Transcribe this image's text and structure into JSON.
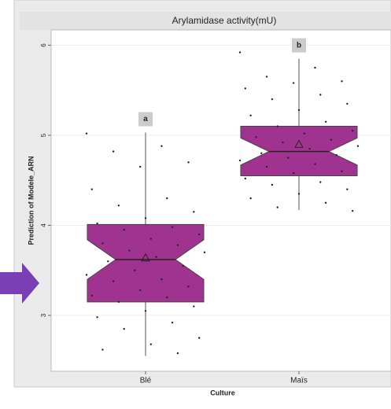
{
  "chart_data": {
    "type": "boxplot",
    "title": "Arylamidase activity(mU)",
    "x_label": "Culture",
    "y_label": "Prediction of Modele_ARN",
    "categories": [
      "Blé",
      "Maïs"
    ],
    "annotations": [
      "a",
      "b"
    ],
    "color": "#a0338f",
    "grid": true,
    "ylim": [
      2.38,
      6.17
    ],
    "yticks": [
      3,
      4,
      5,
      6
    ],
    "boxes": [
      {
        "whislo": 2.55,
        "q1": 3.15,
        "notch_lo": 3.4,
        "med": 3.62,
        "notch_hi": 3.84,
        "q3": 4.01,
        "whishi": 5.03,
        "mean": 3.64
      },
      {
        "whislo": 4.17,
        "q1": 4.55,
        "notch_lo": 4.67,
        "med": 4.82,
        "notch_hi": 4.97,
        "q3": 5.1,
        "whishi": 5.85,
        "mean": 4.9
      }
    ],
    "points": [
      [
        5.02,
        4.88,
        4.82,
        4.7,
        4.65,
        4.4,
        4.3,
        4.22,
        4.15,
        4.08,
        4.02,
        3.98,
        3.95,
        3.9,
        3.85,
        3.8,
        3.78,
        3.72,
        3.7,
        3.65,
        3.6,
        3.55,
        3.5,
        3.45,
        3.4,
        3.38,
        3.32,
        3.28,
        3.22,
        3.2,
        3.15,
        3.1,
        3.05,
        2.98,
        2.92,
        2.85,
        2.75,
        2.68,
        2.62,
        2.58
      ],
      [
        5.92,
        5.75,
        5.65,
        5.6,
        5.58,
        5.52,
        5.45,
        5.4,
        5.35,
        5.28,
        5.22,
        5.15,
        5.1,
        5.05,
        5.02,
        4.98,
        4.95,
        4.92,
        4.88,
        4.85,
        4.8,
        4.78,
        4.75,
        4.72,
        4.68,
        4.65,
        4.6,
        4.58,
        4.52,
        4.48,
        4.45,
        4.4,
        4.35,
        4.3,
        4.25,
        4.2,
        4.16
      ]
    ]
  }
}
